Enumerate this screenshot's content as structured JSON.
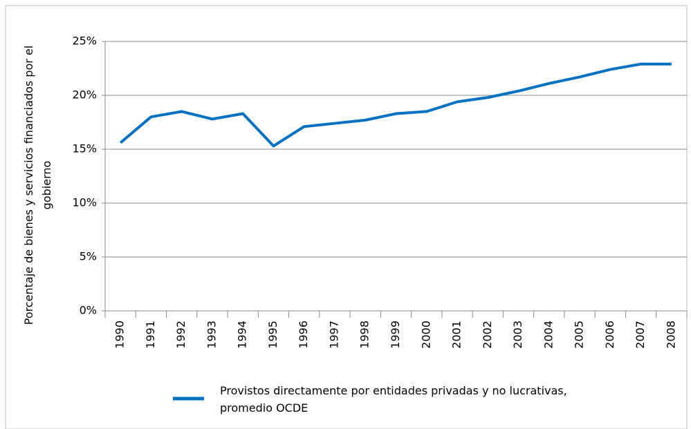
{
  "chart_data": {
    "type": "line",
    "y_label": [
      "Porcentaje de bienes y servicios financiados por el",
      "gobierno"
    ],
    "categories": [
      "1990",
      "1991",
      "1992",
      "1993",
      "1994",
      "1995",
      "1996",
      "1997",
      "1998",
      "1999",
      "2000",
      "2001",
      "2002",
      "2003",
      "2004",
      "2005",
      "2006",
      "2007",
      "2008"
    ],
    "series": [
      {
        "name": "Provistos directamente por entidades privadas y no lucrativas, promedio OCDE",
        "color": "#0070c0",
        "values": [
          15.6,
          18.0,
          18.5,
          17.8,
          18.3,
          15.3,
          17.1,
          17.4,
          17.7,
          18.3,
          18.5,
          19.4,
          19.8,
          20.4,
          21.1,
          21.7,
          22.4,
          22.9,
          22.9
        ]
      }
    ],
    "ylim": [
      0,
      25
    ],
    "yticks": [
      {
        "value": 0,
        "label": "0%"
      },
      {
        "value": 5,
        "label": "5%"
      },
      {
        "value": 10,
        "label": "10%"
      },
      {
        "value": 15,
        "label": "15%"
      },
      {
        "value": 20,
        "label": "20%"
      },
      {
        "value": 25,
        "label": "25%"
      }
    ],
    "grid": true,
    "legend": "bottom"
  }
}
